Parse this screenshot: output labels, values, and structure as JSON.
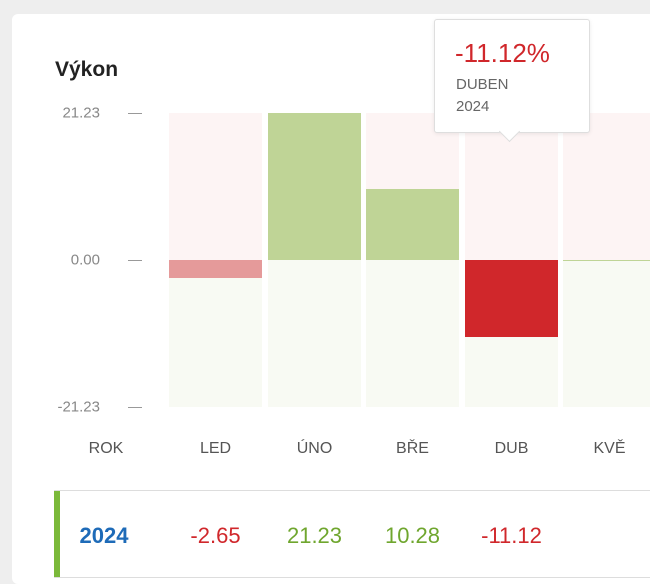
{
  "title": "Výkon",
  "colors": {
    "positive": "#bfd496",
    "negative": "#d0272b",
    "negative_light": "#e59a9a",
    "positive_text": "#6fa62e",
    "negative_text": "#d0272b",
    "year_text": "#1e6bb8",
    "accent": "#7bb93a"
  },
  "chart_data": {
    "type": "bar",
    "categories": [
      "LED",
      "ÚNO",
      "BŘE",
      "DUB",
      "KVĚ"
    ],
    "series": [
      {
        "values": [
          -2.65,
          21.23,
          10.28,
          -11.12,
          0
        ]
      }
    ],
    "y_ticks": [
      "21.23",
      "0.00",
      "-21.23"
    ],
    "ylim": [
      -21.23,
      21.23
    ],
    "xlabel": "",
    "ylabel": "",
    "grid": false,
    "highlighted_index": 3
  },
  "axis": {
    "first_column_label": "ROK"
  },
  "tooltip": {
    "value": "-11.12%",
    "month": "DUBEN",
    "year": "2024"
  },
  "table": {
    "year": "2024",
    "values": [
      "-2.65",
      "21.23",
      "10.28",
      "-11.12",
      ""
    ]
  }
}
